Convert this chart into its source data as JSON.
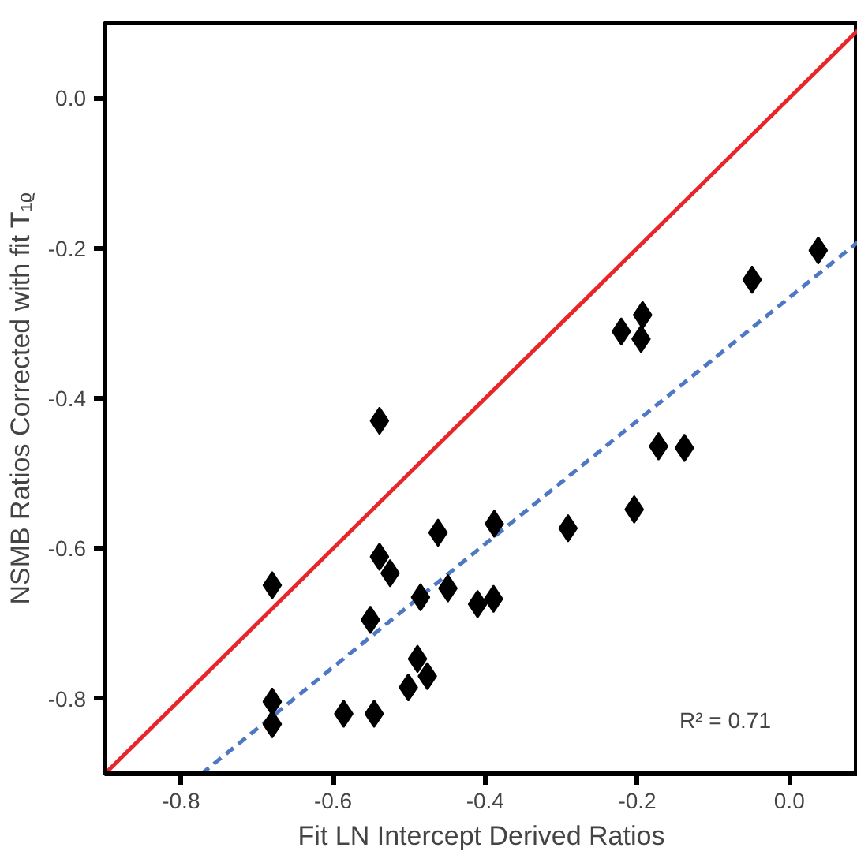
{
  "chart_data": {
    "type": "scatter",
    "xlabel": "Fit LN Intercept Derived Ratios",
    "ylabel": "NSMB Ratios Corrected with fit T₁ᵨ",
    "xlim": [
      -0.9,
      0.09
    ],
    "ylim": [
      -0.9,
      0.1
    ],
    "xticks": [
      {
        "value": -0.8,
        "label": "-0.8"
      },
      {
        "value": -0.6,
        "label": "-0.6"
      },
      {
        "value": -0.4,
        "label": "-0.4"
      },
      {
        "value": -0.2,
        "label": "-0.2"
      },
      {
        "value": 0.0,
        "label": "0.0"
      }
    ],
    "yticks": [
      {
        "value": -0.8,
        "label": "-0.8"
      },
      {
        "value": -0.6,
        "label": "-0.6"
      },
      {
        "value": -0.4,
        "label": "-0.4"
      },
      {
        "value": -0.2,
        "label": "-0.2"
      },
      {
        "value": 0.0,
        "label": "0.0"
      }
    ],
    "grid": false,
    "annotations": [
      "R² = 0.71"
    ],
    "series": [
      {
        "type": "line",
        "color": "#e8262a",
        "line_style": "solid",
        "x": [
          -0.9,
          0.09
        ],
        "values": [
          -0.9,
          0.09
        ]
      },
      {
        "type": "line",
        "color": "#4f78c4",
        "line_style": "dashed",
        "x": [
          -0.773,
          0.09
        ],
        "values": [
          -0.9,
          -0.192
        ]
      },
      {
        "color": "#000000",
        "marker": "diamond",
        "x": [
          0.038,
          -0.049,
          -0.221,
          -0.193,
          -0.195,
          -0.539,
          -0.172,
          -0.138,
          -0.204,
          -0.291,
          -0.388,
          -0.462,
          -0.68,
          -0.539,
          -0.525,
          -0.449,
          -0.485,
          -0.41,
          -0.389,
          -0.551,
          -0.489,
          -0.476,
          -0.501,
          -0.68,
          -0.68,
          -0.586,
          -0.546
        ],
        "values": [
          -0.203,
          -0.242,
          -0.311,
          -0.289,
          -0.321,
          -0.43,
          -0.464,
          -0.466,
          -0.548,
          -0.573,
          -0.567,
          -0.579,
          -0.649,
          -0.611,
          -0.633,
          -0.653,
          -0.665,
          -0.674,
          -0.667,
          -0.695,
          -0.747,
          -0.77,
          -0.785,
          -0.804,
          -0.834,
          -0.82,
          -0.82
        ]
      }
    ]
  }
}
